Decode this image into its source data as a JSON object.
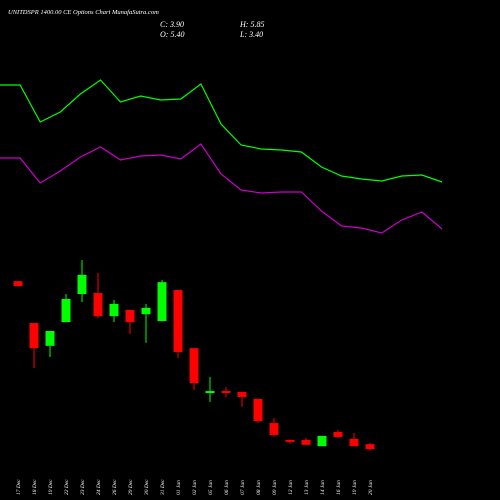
{
  "chart_data": {
    "type": "candlestick",
    "title": "UNITDSPR 1400.00 CE Options Chart MunafaSutra.com",
    "info": {
      "close": "C: 3.90",
      "high": "H: 5.85",
      "open": "O: 5.40",
      "low": "L: 3.40"
    },
    "categories": [
      "17 Dec",
      "18 Dec",
      "19 Dec",
      "22 Dec",
      "23 Dec",
      "24 Dec",
      "26 Dec",
      "29 Dec",
      "30 Dec",
      "31 Dec",
      "01 Jan",
      "02 Jan",
      "05 Jan",
      "06 Jan",
      "07 Jan",
      "08 Jan",
      "09 Jan",
      "12 Jan",
      "13 Jan",
      "14 Jan",
      "16 Jan",
      "19 Jan",
      "20 Jan"
    ],
    "open": [
      54.8,
      42.1,
      35.2,
      42.4,
      50.9,
      51.2,
      44.2,
      46.1,
      44.8,
      42.7,
      52.1,
      34.5,
      20.9,
      21.5,
      21.2,
      19.1,
      11.8,
      6.7,
      6.7,
      4.8,
      9.1,
      7.0,
      5.4
    ],
    "high": [
      54.8,
      42.1,
      39.7,
      50.9,
      61.2,
      57.3,
      49.1,
      46.1,
      47.9,
      55.2,
      52.1,
      34.5,
      25.8,
      22.7,
      21.2,
      19.1,
      13.3,
      6.7,
      7.3,
      7.9,
      9.7,
      8.8,
      5.85
    ],
    "low": [
      53.3,
      28.5,
      31.8,
      42.4,
      48.5,
      43.6,
      42.4,
      38.8,
      36.1,
      42.7,
      31.5,
      21.8,
      18.2,
      19.7,
      16.7,
      11.8,
      7.6,
      5.5,
      5.2,
      4.8,
      7.3,
      4.8,
      3.4
    ],
    "close": [
      53.3,
      34.5,
      39.7,
      49.4,
      56.7,
      44.2,
      47.9,
      42.4,
      46.7,
      54.5,
      33.3,
      23.9,
      21.5,
      20.9,
      19.7,
      12.4,
      8.2,
      6.1,
      5.2,
      7.9,
      7.6,
      4.8,
      3.9
    ],
    "up_color": "#00ff00",
    "down_color": "#ff0000",
    "ylim": [
      0,
      65
    ],
    "lines": [
      {
        "color": "#00ff00",
        "values": [
          82.5,
          82.5,
          64,
          69,
          78,
          85,
          74,
          77,
          75,
          75.5,
          83,
          63,
          52.5,
          50.5,
          50,
          49,
          41.5,
          37,
          35.5,
          34.5,
          37,
          37.5,
          34
        ]
      },
      {
        "color": "#cc00cc",
        "values": [
          46,
          46,
          33.5,
          39.5,
          46.5,
          51.5,
          45,
          47,
          47.5,
          45.5,
          53,
          38,
          30,
          28.5,
          29,
          29,
          19.5,
          12,
          11,
          8.5,
          15,
          19,
          10.5
        ]
      }
    ],
    "y2lim": [
      0,
      100
    ]
  }
}
